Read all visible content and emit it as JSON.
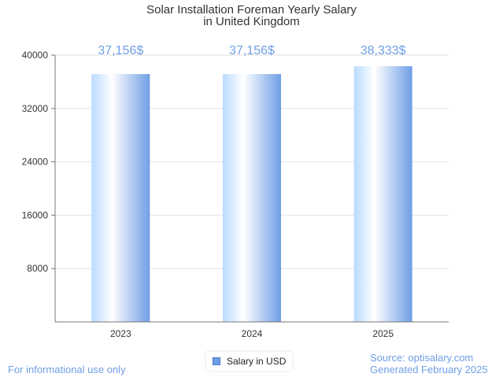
{
  "chart_data": {
    "type": "bar",
    "title": "Solar Installation Foreman Yearly Salary",
    "subtitle": "in United Kingdom",
    "categories": [
      "2023",
      "2024",
      "2025"
    ],
    "series": [
      {
        "name": "Salary in USD",
        "values": [
          37156,
          37156,
          38333
        ]
      }
    ],
    "data_labels": [
      "37,156$",
      "37,156$",
      "38,333$"
    ],
    "y_ticks": [
      8000,
      16000,
      24000,
      32000,
      40000
    ],
    "ylim": [
      0,
      40000
    ],
    "grid": true,
    "legend": "bottom-center"
  },
  "footer": {
    "disclaimer": "For informational use only",
    "source": "Source: optisalary.com",
    "generated": "Generated February 2025"
  },
  "colors": {
    "bar_light": "#ffffff",
    "bar_mid": "#b9dbff",
    "bar_dark": "#6f9ee6",
    "label": "#6f9ee6"
  }
}
